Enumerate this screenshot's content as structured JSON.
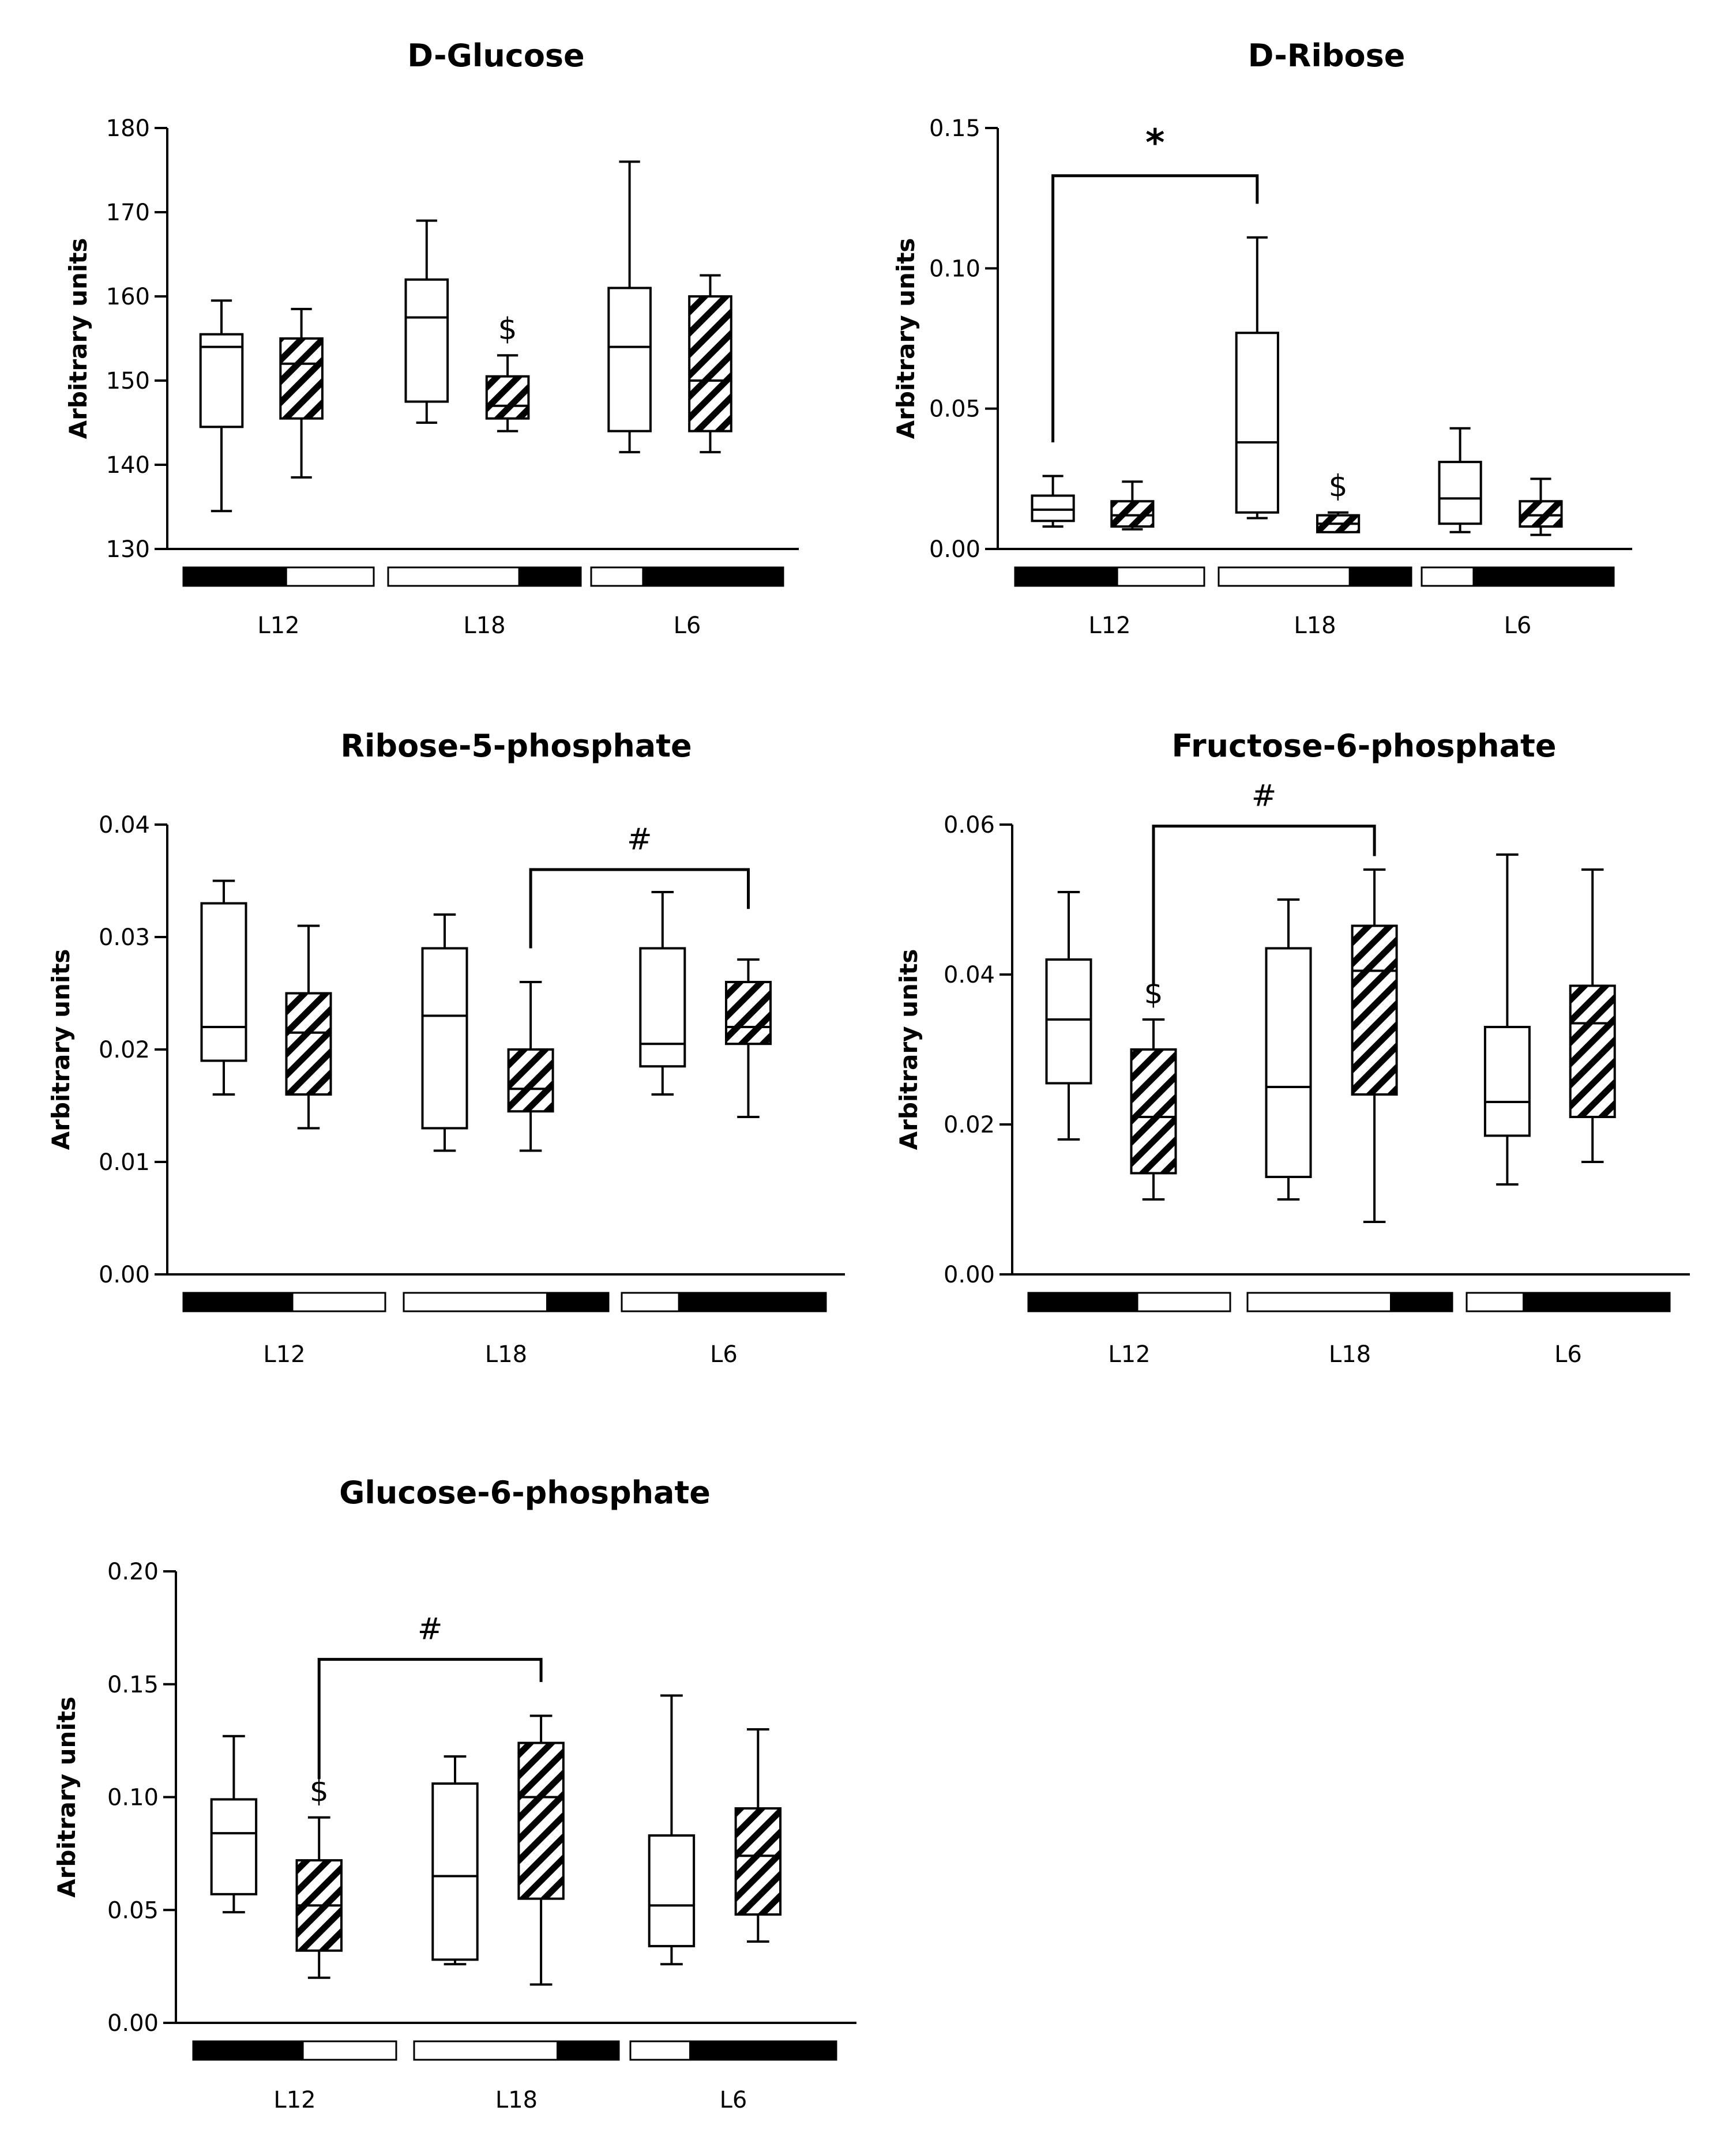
{
  "chart_data": [
    {
      "type": "box",
      "title": "D-Glucose",
      "ylabel": "Arbitrary units",
      "ylim": [
        130,
        180
      ],
      "yticks": [
        "130",
        "140",
        "150",
        "160",
        "170",
        "180"
      ],
      "categories": [
        "L12",
        "L18",
        "L6"
      ],
      "series": [
        {
          "name": "open",
          "pattern": "white",
          "boxes": [
            {
              "min": 134.5,
              "q1": 144.5,
              "median": 154,
              "q3": 155.5,
              "max": 159.5
            },
            {
              "min": 145,
              "q1": 147.5,
              "median": 157.5,
              "q3": 162,
              "max": 169
            },
            {
              "min": 141.5,
              "q1": 144,
              "median": 154,
              "q3": 161,
              "max": 176
            }
          ]
        },
        {
          "name": "hatched",
          "pattern": "hatched",
          "boxes": [
            {
              "min": 138.5,
              "q1": 145.5,
              "median": 152,
              "q3": 155,
              "max": 158.5
            },
            {
              "min": 144,
              "q1": 145.5,
              "median": 147,
              "q3": 150.5,
              "max": 153
            },
            {
              "min": 141.5,
              "q1": 144,
              "median": 150,
              "q3": 160,
              "max": 162.5
            }
          ]
        }
      ],
      "markers": [
        {
          "text": "$",
          "category": 1,
          "series": 1
        }
      ],
      "brackets": [],
      "light_bars": [
        [
          0.54,
          1
        ],
        [
          0,
          0.68
        ],
        [
          0,
          0.27
        ]
      ]
    },
    {
      "type": "box",
      "title": "D-Ribose",
      "ylabel": "Arbitrary units",
      "ylim": [
        0,
        0.15
      ],
      "yticks": [
        "0.00",
        "0.05",
        "0.10",
        "0.15"
      ],
      "categories": [
        "L12",
        "L18",
        "L6"
      ],
      "series": [
        {
          "name": "open",
          "pattern": "white",
          "boxes": [
            {
              "min": 0.008,
              "q1": 0.01,
              "median": 0.014,
              "q3": 0.019,
              "max": 0.026
            },
            {
              "min": 0.011,
              "q1": 0.013,
              "median": 0.038,
              "q3": 0.077,
              "max": 0.111
            },
            {
              "min": 0.006,
              "q1": 0.009,
              "median": 0.018,
              "q3": 0.031,
              "max": 0.043
            }
          ]
        },
        {
          "name": "hatched",
          "pattern": "hatched",
          "boxes": [
            {
              "min": 0.007,
              "q1": 0.008,
              "median": 0.012,
              "q3": 0.017,
              "max": 0.024
            },
            {
              "min": 0.006,
              "q1": 0.006,
              "median": 0.009,
              "q3": 0.012,
              "max": 0.013
            },
            {
              "min": 0.005,
              "q1": 0.008,
              "median": 0.012,
              "q3": 0.017,
              "max": 0.025
            }
          ]
        }
      ],
      "markers": [
        {
          "text": "$",
          "category": 1,
          "series": 1
        }
      ],
      "brackets": [
        {
          "text": "*",
          "from": {
            "category": 0,
            "series": 0
          },
          "to": {
            "category": 1,
            "series": 0
          },
          "level": 0.133,
          "start": 0.038,
          "end": 0.123
        }
      ],
      "light_bars": [
        [
          0.54,
          1
        ],
        [
          0,
          0.68
        ],
        [
          0,
          0.27
        ]
      ]
    },
    {
      "type": "box",
      "title": "Ribose-5-phosphate",
      "ylabel": "Arbitrary units",
      "ylim": [
        0,
        0.04
      ],
      "yticks": [
        "0.00",
        "0.01",
        "0.02",
        "0.03",
        "0.04"
      ],
      "categories": [
        "L12",
        "L18",
        "L6"
      ],
      "series": [
        {
          "name": "open",
          "pattern": "white",
          "boxes": [
            {
              "min": 0.016,
              "q1": 0.019,
              "median": 0.022,
              "q3": 0.033,
              "max": 0.035
            },
            {
              "min": 0.011,
              "q1": 0.013,
              "median": 0.023,
              "q3": 0.029,
              "max": 0.032
            },
            {
              "min": 0.016,
              "q1": 0.0185,
              "median": 0.0205,
              "q3": 0.029,
              "max": 0.034
            }
          ]
        },
        {
          "name": "hatched",
          "pattern": "hatched",
          "boxes": [
            {
              "min": 0.013,
              "q1": 0.016,
              "median": 0.0215,
              "q3": 0.025,
              "max": 0.031
            },
            {
              "min": 0.011,
              "q1": 0.0145,
              "median": 0.0165,
              "q3": 0.02,
              "max": 0.026
            },
            {
              "min": 0.014,
              "q1": 0.0205,
              "median": 0.022,
              "q3": 0.026,
              "max": 0.028
            }
          ]
        }
      ],
      "markers": [],
      "brackets": [
        {
          "text": "#",
          "from": {
            "category": 1,
            "series": 1
          },
          "to": {
            "category": 2,
            "series": 1
          },
          "level": 0.036,
          "start": 0.029,
          "end": 0.0325
        }
      ],
      "light_bars": [
        [
          0.54,
          1
        ],
        [
          0,
          0.7
        ],
        [
          0,
          0.28
        ]
      ]
    },
    {
      "type": "box",
      "title": "Fructose-6-phosphate",
      "ylabel": "Arbitrary units",
      "ylim": [
        0,
        0.06
      ],
      "yticks": [
        "0.00",
        "0.02",
        "0.04",
        "0.06"
      ],
      "categories": [
        "L12",
        "L18",
        "L6"
      ],
      "series": [
        {
          "name": "open",
          "pattern": "white",
          "boxes": [
            {
              "min": 0.018,
              "q1": 0.0255,
              "median": 0.034,
              "q3": 0.042,
              "max": 0.051
            },
            {
              "min": 0.01,
              "q1": 0.013,
              "median": 0.025,
              "q3": 0.0435,
              "max": 0.05
            },
            {
              "min": 0.012,
              "q1": 0.0185,
              "median": 0.023,
              "q3": 0.033,
              "max": 0.056
            }
          ]
        },
        {
          "name": "hatched",
          "pattern": "hatched",
          "boxes": [
            {
              "min": 0.01,
              "q1": 0.0135,
              "median": 0.021,
              "q3": 0.03,
              "max": 0.034
            },
            {
              "min": 0.007,
              "q1": 0.024,
              "median": 0.0405,
              "q3": 0.0465,
              "max": 0.054
            },
            {
              "min": 0.015,
              "q1": 0.021,
              "median": 0.0335,
              "q3": 0.0385,
              "max": 0.054
            }
          ]
        }
      ],
      "markers": [
        {
          "text": "$",
          "category": 0,
          "series": 1
        }
      ],
      "brackets": [
        {
          "text": "#",
          "from": {
            "category": 0,
            "series": 1
          },
          "to": {
            "category": 1,
            "series": 1
          },
          "level": 0.0598,
          "start": 0.0385,
          "end": 0.0558
        }
      ],
      "light_bars": [
        [
          0.54,
          1
        ],
        [
          0,
          0.7
        ],
        [
          0,
          0.28
        ]
      ]
    },
    {
      "type": "box",
      "title": "Glucose-6-phosphate",
      "ylabel": "Arbitrary units",
      "ylim": [
        0,
        0.2
      ],
      "yticks": [
        "0.00",
        "0.05",
        "0.10",
        "0.15",
        "0.20"
      ],
      "categories": [
        "L12",
        "L18",
        "L6"
      ],
      "series": [
        {
          "name": "open",
          "pattern": "white",
          "boxes": [
            {
              "min": 0.049,
              "q1": 0.057,
              "median": 0.084,
              "q3": 0.099,
              "max": 0.127
            },
            {
              "min": 0.026,
              "q1": 0.028,
              "median": 0.065,
              "q3": 0.106,
              "max": 0.118
            },
            {
              "min": 0.026,
              "q1": 0.034,
              "median": 0.052,
              "q3": 0.083,
              "max": 0.145
            }
          ]
        },
        {
          "name": "hatched",
          "pattern": "hatched",
          "boxes": [
            {
              "min": 0.02,
              "q1": 0.032,
              "median": 0.052,
              "q3": 0.072,
              "max": 0.091
            },
            {
              "min": 0.017,
              "q1": 0.055,
              "median": 0.1,
              "q3": 0.124,
              "max": 0.136
            },
            {
              "min": 0.036,
              "q1": 0.048,
              "median": 0.074,
              "q3": 0.095,
              "max": 0.13
            }
          ]
        }
      ],
      "markers": [
        {
          "text": "$",
          "category": 0,
          "series": 1
        }
      ],
      "brackets": [
        {
          "text": "#",
          "from": {
            "category": 0,
            "series": 1
          },
          "to": {
            "category": 1,
            "series": 1
          },
          "level": 0.161,
          "start": 0.108,
          "end": 0.151
        }
      ],
      "light_bars": [
        [
          0.54,
          1
        ],
        [
          0,
          0.7
        ],
        [
          0,
          0.29
        ]
      ]
    }
  ]
}
